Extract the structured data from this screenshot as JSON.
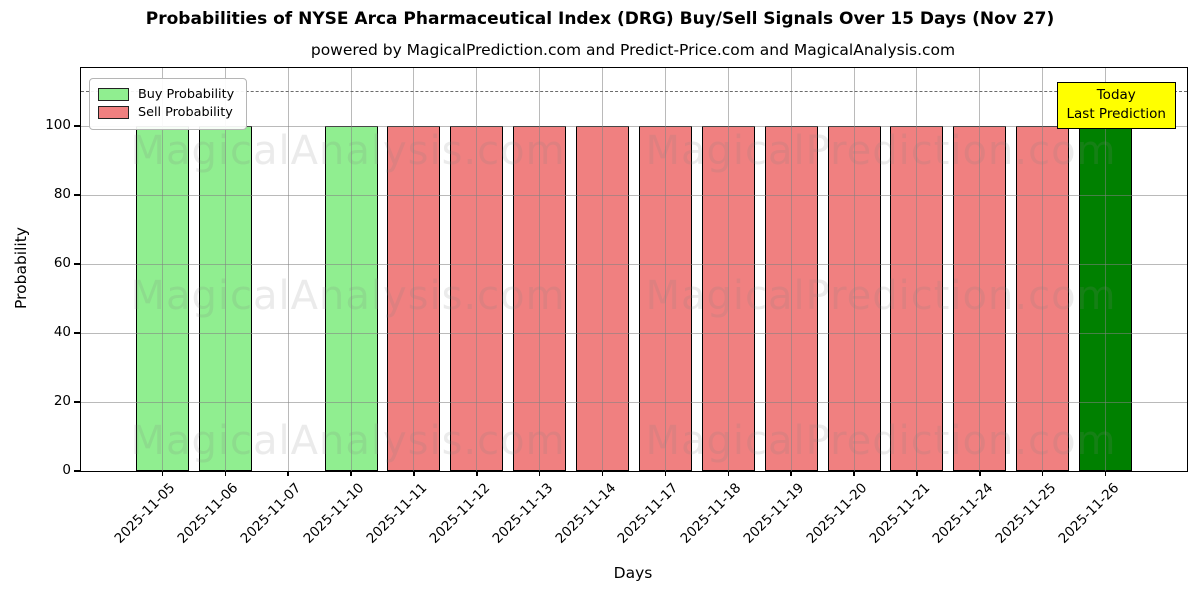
{
  "header": {
    "title": "Probabilities of NYSE Arca Pharmaceutical Index (DRG) Buy/Sell Signals Over 15 Days (Nov 27)",
    "subtitle": "powered by MagicalPrediction.com and Predict-Price.com and MagicalAnalysis.com"
  },
  "legend": {
    "items": [
      {
        "label": "Buy Probability",
        "key": "buy"
      },
      {
        "label": "Sell Probability",
        "key": "sell"
      }
    ]
  },
  "annotation_box": {
    "lines": [
      "Today",
      "Last Prediction"
    ]
  },
  "watermarks": {
    "left_text": "MagicalAnalysis.com",
    "right_text": "MagicalPrediction.com"
  },
  "colors": {
    "buy": "#90ee90",
    "sell": "#f08080",
    "today": "#008000",
    "bar_edge": "#000000",
    "grid": "#828282",
    "dashed_line": "#6b6b6b",
    "annotation_bg": "#ffff00",
    "annotation_border": "#000000",
    "legend_border": "#b5b5b5"
  },
  "chart_data": {
    "type": "bar",
    "title": "Probabilities of NYSE Arca Pharmaceutical Index (DRG) Buy/Sell Signals Over 15 Days (Nov 27)",
    "subtitle": "powered by MagicalPrediction.com and Predict-Price.com and MagicalAnalysis.com",
    "xlabel": "Days",
    "ylabel": "Probability",
    "ylim": [
      0,
      117
    ],
    "yticks": [
      0,
      20,
      40,
      60,
      80,
      100
    ],
    "dashed_threshold_y": 110,
    "grid": true,
    "legend_position": "upper left",
    "categories": [
      "2025-11-05",
      "2025-11-06",
      "2025-11-07",
      "2025-11-10",
      "2025-11-11",
      "2025-11-12",
      "2025-11-13",
      "2025-11-14",
      "2025-11-17",
      "2025-11-18",
      "2025-11-19",
      "2025-11-20",
      "2025-11-21",
      "2025-11-24",
      "2025-11-25",
      "2025-11-26"
    ],
    "bars": [
      {
        "date": "2025-11-05",
        "value": 100,
        "signal": "buy"
      },
      {
        "date": "2025-11-06",
        "value": 100,
        "signal": "buy"
      },
      {
        "date": "2025-11-07",
        "value": 0,
        "signal": "none"
      },
      {
        "date": "2025-11-10",
        "value": 100,
        "signal": "buy"
      },
      {
        "date": "2025-11-11",
        "value": 100,
        "signal": "sell"
      },
      {
        "date": "2025-11-12",
        "value": 100,
        "signal": "sell"
      },
      {
        "date": "2025-11-13",
        "value": 100,
        "signal": "sell"
      },
      {
        "date": "2025-11-14",
        "value": 100,
        "signal": "sell"
      },
      {
        "date": "2025-11-17",
        "value": 100,
        "signal": "sell"
      },
      {
        "date": "2025-11-18",
        "value": 100,
        "signal": "sell"
      },
      {
        "date": "2025-11-19",
        "value": 100,
        "signal": "sell"
      },
      {
        "date": "2025-11-20",
        "value": 100,
        "signal": "sell"
      },
      {
        "date": "2025-11-21",
        "value": 100,
        "signal": "sell"
      },
      {
        "date": "2025-11-24",
        "value": 100,
        "signal": "sell"
      },
      {
        "date": "2025-11-25",
        "value": 100,
        "signal": "sell"
      },
      {
        "date": "2025-11-26",
        "value": 100,
        "signal": "today"
      }
    ],
    "series": [
      {
        "name": "Buy Probability",
        "color": "#90ee90",
        "values": [
          100,
          100,
          0,
          100,
          0,
          0,
          0,
          0,
          0,
          0,
          0,
          0,
          0,
          0,
          0,
          0
        ]
      },
      {
        "name": "Sell Probability",
        "color": "#f08080",
        "values": [
          0,
          0,
          0,
          0,
          100,
          100,
          100,
          100,
          100,
          100,
          100,
          100,
          100,
          100,
          100,
          0
        ]
      },
      {
        "name": "Today / Last Prediction",
        "color": "#008000",
        "values": [
          0,
          0,
          0,
          0,
          0,
          0,
          0,
          0,
          0,
          0,
          0,
          0,
          0,
          0,
          0,
          100
        ]
      }
    ]
  }
}
